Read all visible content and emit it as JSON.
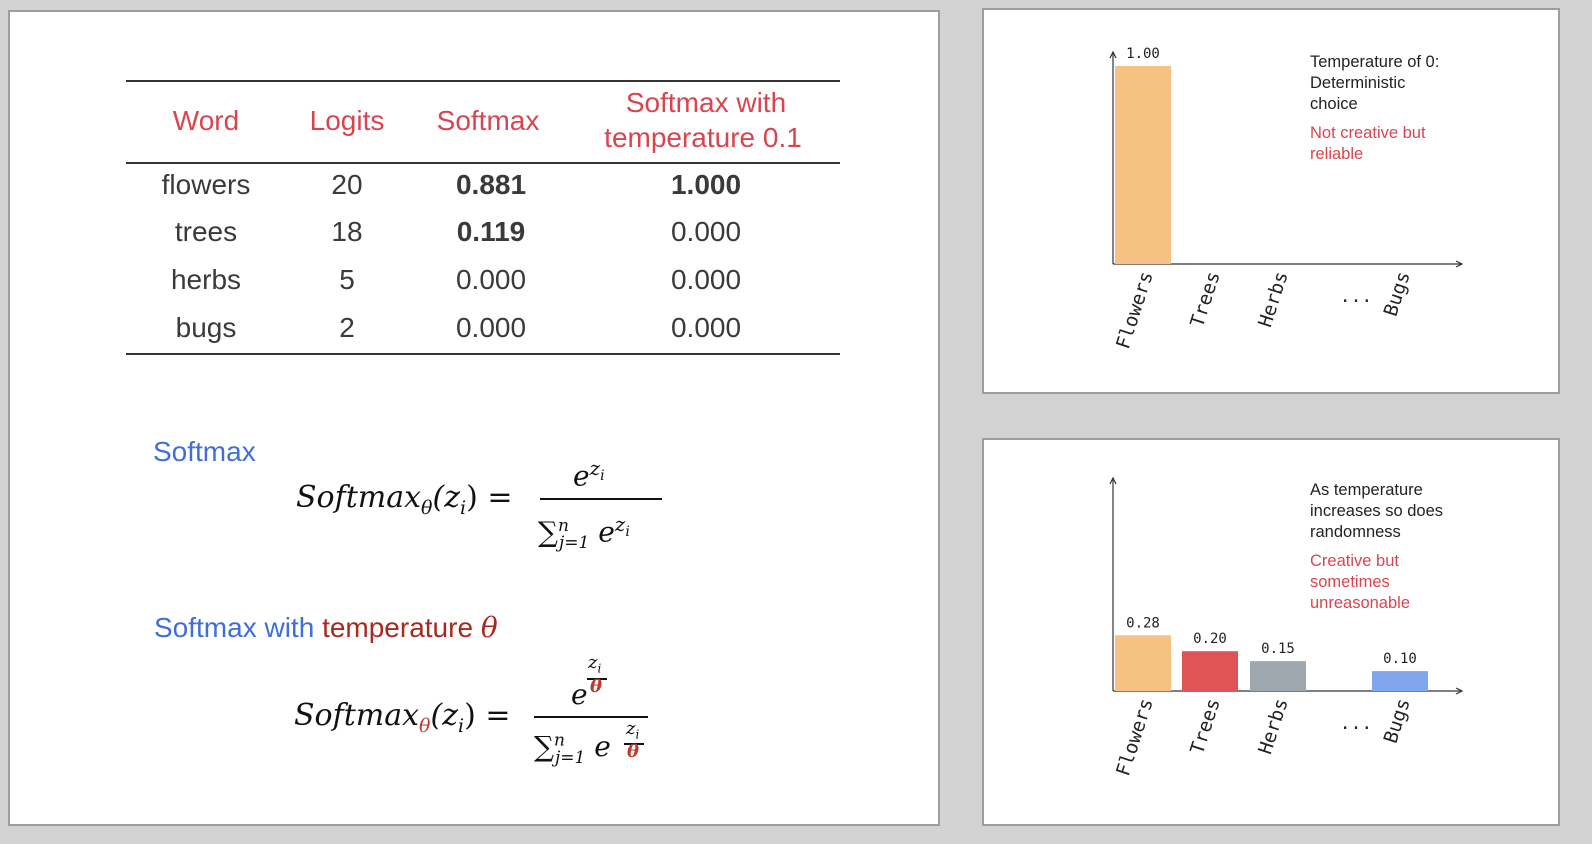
{
  "table": {
    "headers": [
      "Word",
      "Logits",
      "Softmax",
      "Softmax with",
      "temperature 0.1"
    ],
    "rows": [
      {
        "word": "flowers",
        "logit": "20",
        "softmax": "0.881",
        "softmax_temp": "1.000"
      },
      {
        "word": "trees",
        "logit": "18",
        "softmax": "0.119",
        "softmax_temp": "0.000"
      },
      {
        "word": "herbs",
        "logit": "5",
        "softmax": "0.000",
        "softmax_temp": "0.000"
      },
      {
        "word": "bugs",
        "logit": "2",
        "softmax": "0.000",
        "softmax_temp": "0.000"
      }
    ]
  },
  "formulas": {
    "softmax_label": "Softmax",
    "temp_label_a": "Softmax with ",
    "temp_label_b": "temperature",
    "temp_symbol": "θ",
    "fn_name": "Softmax",
    "theta": "θ",
    "arg": "(z",
    "arg_sub": "i",
    "arg_close": ") =",
    "e": "e",
    "z": "z",
    "i": "i",
    "sum": "∑",
    "sum_sup": "n",
    "sum_sub": "j=1"
  },
  "chart_top_note": {
    "line1": "Temperature of 0:",
    "line2": "Deterministic",
    "line3": "choice",
    "red1": "Not creative but",
    "red2": "reliable"
  },
  "chart_bottom_note": {
    "line1": "As temperature",
    "line2": "increases so does",
    "line3": "randomness",
    "red1": "Creative but",
    "red2": "sometimes",
    "red3": "unreasonable"
  },
  "colors": {
    "flowers": "#f5c283",
    "trees": "#e05356",
    "herbs": "#9ea7ad",
    "bugs": "#7fa6ee"
  },
  "chart_data": [
    {
      "type": "bar",
      "categories": [
        "Flowers",
        "Trees",
        "Herbs",
        "...",
        "Bugs"
      ],
      "values": [
        1.0,
        0,
        0,
        null,
        0
      ],
      "value_labels": [
        "1.00",
        "",
        "",
        "",
        ""
      ],
      "ylim": [
        0,
        1.0
      ]
    },
    {
      "type": "bar",
      "categories": [
        "Flowers",
        "Trees",
        "Herbs",
        "...",
        "Bugs"
      ],
      "values": [
        0.28,
        0.2,
        0.15,
        null,
        0.1
      ],
      "value_labels": [
        "0.28",
        "0.20",
        "0.15",
        "",
        "0.10"
      ],
      "ylim": [
        0,
        1.0
      ]
    }
  ]
}
